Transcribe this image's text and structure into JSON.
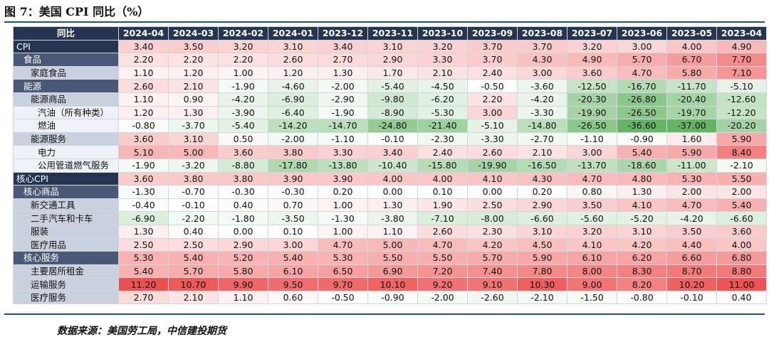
{
  "header": {
    "title": "图 7：美国 CPI 同比（%）"
  },
  "table": {
    "columns": [
      "同比",
      "2024-04",
      "2024-03",
      "2024-02",
      "2024-01",
      "2023-12",
      "2023-11",
      "2023-10",
      "2023-09",
      "2023-08",
      "2023-07",
      "2023-06",
      "2023-05",
      "2023-04"
    ],
    "rows": [
      [
        "CPI",
        "3.40",
        "3.50",
        "3.20",
        "3.10",
        "3.40",
        "3.10",
        "3.20",
        "3.70",
        "3.70",
        "3.20",
        "3.00",
        "4.00",
        "4.90"
      ],
      [
        "食品",
        "2.20",
        "2.20",
        "2.20",
        "2.60",
        "2.70",
        "2.90",
        "3.30",
        "3.70",
        "4.30",
        "4.90",
        "5.70",
        "6.70",
        "7.70"
      ],
      [
        "家庭食品",
        "1.10",
        "1.20",
        "1.00",
        "1.20",
        "1.30",
        "1.70",
        "2.10",
        "2.40",
        "3.00",
        "3.60",
        "4.70",
        "5.80",
        "7.10"
      ],
      [
        "能源",
        "2.60",
        "2.10",
        "-1.90",
        "-4.60",
        "-2.00",
        "-5.40",
        "-4.50",
        "-0.50",
        "-3.60",
        "-12.50",
        "-16.70",
        "-11.70",
        "-5.10"
      ],
      [
        "能源商品",
        "1.10",
        "0.90",
        "-4.20",
        "-6.90",
        "-2.90",
        "-9.80",
        "-6.20",
        "2.20",
        "-4.20",
        "-20.30",
        "-26.80",
        "-20.40",
        "-12.60"
      ],
      [
        "汽油（所有种类）",
        "1.20",
        "1.30",
        "-3.90",
        "-6.40",
        "-1.90",
        "-8.90",
        "-5.30",
        "3.00",
        "-3.30",
        "-19.90",
        "-26.50",
        "-19.70",
        "-12.20"
      ],
      [
        "燃油",
        "-0.80",
        "-3.70",
        "-5.40",
        "-14.20",
        "-14.70",
        "-24.80",
        "-21.40",
        "-5.10",
        "-14.80",
        "-26.50",
        "-36.60",
        "-37.00",
        "-20.20"
      ],
      [
        "能源服务",
        "3.60",
        "3.10",
        "0.50",
        "-2.00",
        "-1.10",
        "-0.10",
        "-2.30",
        "-3.30",
        "-2.70",
        "-1.10",
        "-0.90",
        "1.60",
        "5.90"
      ],
      [
        "电力",
        "5.10",
        "5.00",
        "3.60",
        "3.80",
        "3.30",
        "3.40",
        "2.40",
        "2.60",
        "2.10",
        "3.00",
        "5.40",
        "5.90",
        "8.40"
      ],
      [
        "公用管道燃气服务",
        "-1.90",
        "-3.20",
        "-8.80",
        "-17.80",
        "-13.80",
        "-10.40",
        "-15.80",
        "-19.90",
        "-16.50",
        "-13.70",
        "-18.60",
        "-11.00",
        "-2.10"
      ],
      [
        "核心CPI",
        "3.60",
        "3.80",
        "3.80",
        "3.90",
        "3.90",
        "4.00",
        "4.00",
        "4.10",
        "4.30",
        "4.70",
        "4.80",
        "5.30",
        "5.50"
      ],
      [
        "核心商品",
        "-1.30",
        "-0.70",
        "-0.30",
        "-0.30",
        "0.20",
        "0.00",
        "0.10",
        "0.00",
        "0.20",
        "0.80",
        "1.30",
        "2.00",
        "2.00"
      ],
      [
        "新交通工具",
        "-0.40",
        "-0.10",
        "0.40",
        "0.70",
        "1.00",
        "1.30",
        "1.90",
        "2.50",
        "2.90",
        "3.50",
        "4.10",
        "4.70",
        "5.40"
      ],
      [
        "二手汽车和卡车",
        "-6.90",
        "-2.20",
        "-1.80",
        "-3.50",
        "-1.30",
        "-3.80",
        "-7.10",
        "-8.00",
        "-6.60",
        "-5.60",
        "-5.20",
        "-4.20",
        "-6.60"
      ],
      [
        "服装",
        "1.30",
        "0.40",
        "0.00",
        "0.10",
        "1.00",
        "1.10",
        "2.60",
        "2.30",
        "3.10",
        "3.20",
        "3.10",
        "3.50",
        "3.60"
      ],
      [
        "医疗用品",
        "2.50",
        "2.50",
        "2.90",
        "3.00",
        "4.70",
        "5.00",
        "4.70",
        "4.20",
        "4.50",
        "4.10",
        "4.20",
        "4.40",
        "4.00"
      ],
      [
        "核心服务",
        "5.30",
        "5.40",
        "5.20",
        "5.40",
        "5.30",
        "5.50",
        "5.50",
        "5.70",
        "5.90",
        "6.10",
        "6.20",
        "6.60",
        "6.80"
      ],
      [
        "主要居所租金",
        "5.40",
        "5.70",
        "5.80",
        "6.10",
        "6.50",
        "6.90",
        "7.20",
        "7.40",
        "7.80",
        "8.00",
        "8.30",
        "8.70",
        "8.80"
      ],
      [
        "运输服务",
        "11.20",
        "10.70",
        "9.90",
        "9.50",
        "9.70",
        "10.10",
        "9.20",
        "9.10",
        "10.30",
        "9.00",
        "8.20",
        "10.20",
        "11.00"
      ],
      [
        "医疗服务",
        "2.70",
        "2.10",
        "1.10",
        "0.60",
        "-0.50",
        "-0.90",
        "-2.00",
        "-2.60",
        "-2.10",
        "-1.50",
        "-0.80",
        "-0.10",
        "0.40"
      ]
    ]
  },
  "source": "数据来源：美国劳工局，中信建投期货"
}
